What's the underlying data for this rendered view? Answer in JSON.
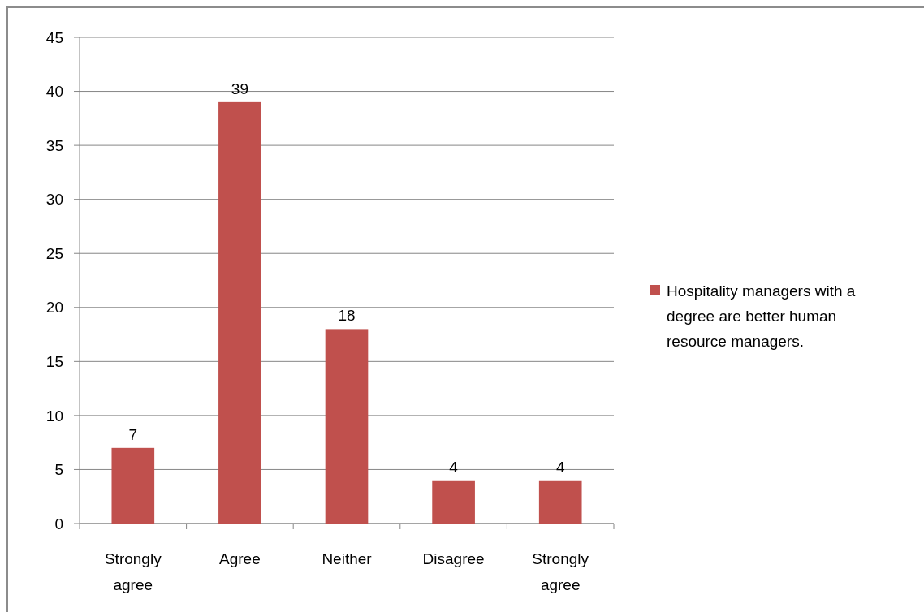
{
  "chart_data": {
    "type": "bar",
    "categories": [
      "Strongly agree",
      "Agree",
      "Neither",
      "Disagree",
      "Strongly agree"
    ],
    "series": [
      {
        "name": "Hospitality managers with a degree are better human resource managers.",
        "color": "#c0504d",
        "values": [
          7,
          39,
          18,
          4,
          4
        ]
      }
    ],
    "ylim": [
      0,
      45
    ],
    "yticks": [
      0,
      5,
      10,
      15,
      20,
      25,
      30,
      35,
      40,
      45
    ],
    "grid": "y",
    "legend": "right",
    "data_labels": true
  }
}
